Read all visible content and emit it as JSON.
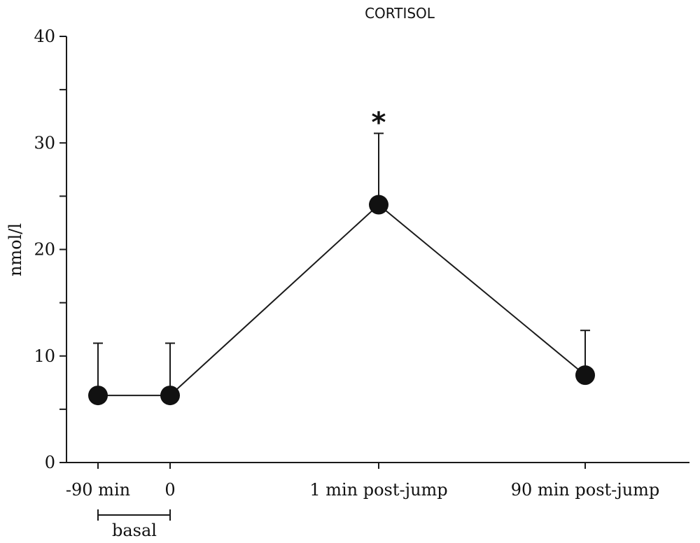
{
  "chart_data": {
    "type": "line",
    "title": "CORTISOL",
    "xlabel": "",
    "ylabel": "nmol/l",
    "ylim": [
      0,
      40
    ],
    "yticks": [
      0,
      10,
      20,
      30,
      40
    ],
    "grid": false,
    "categories": [
      "-90 min",
      "0",
      "1 min post-jump",
      "90 min post-jump"
    ],
    "series": [
      {
        "values": [
          6.3,
          6.3,
          24.2,
          8.2
        ],
        "error_upper": [
          4.9,
          4.9,
          6.7,
          4.2
        ]
      }
    ],
    "annotations": [
      {
        "category_index": 2,
        "text": "*"
      }
    ],
    "group_bracket": {
      "label": "basal",
      "from_index": 0,
      "to_index": 1
    }
  }
}
